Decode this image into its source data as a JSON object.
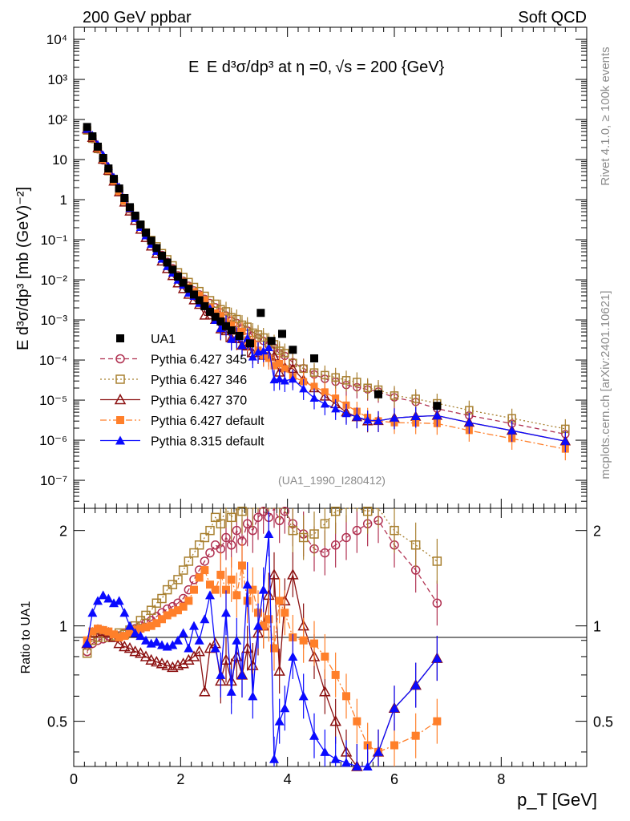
{
  "header": {
    "left_title": "200 GeV ppbar",
    "right_title": "Soft QCD"
  },
  "chart_data": {
    "type": "scatter",
    "title_parts": {
      "obs": "E d³σ/dp³ at η =0,",
      "sqrt": "√s",
      "rest": " = 200 {GeV}"
    },
    "xlabel": "p_T [GeV]",
    "ylabel": "E d³σ/dp³ [mb (GeV)⁻²]",
    "ratio_ylabel": "Ratio to UA1",
    "xlim": [
      0,
      9.6
    ],
    "ylim_log": [
      2e-08,
      20000
    ],
    "ratio_ylim": [
      0.36,
      2.35
    ],
    "x_ticks": [
      "0",
      "2",
      "4",
      "6",
      "8"
    ],
    "y_ticks": [
      "10⁻⁷",
      "10⁻⁶",
      "10⁻⁵",
      "10⁻⁴",
      "10⁻³",
      "10⁻²",
      "10⁻¹",
      "1",
      "10",
      "10²",
      "10³",
      "10⁴"
    ],
    "ratio_ticks": [
      "0.5",
      "1",
      "2"
    ],
    "watermark": "(UA1_1990_I280412)",
    "side_label_top": "Rivet 4.1.0, ≥ 100k events",
    "side_label_bottom": "mcplots.cern.ch [arXiv:2401.10621]",
    "legend": [
      {
        "name": "UA1",
        "color": "#000000",
        "marker": "square-filled",
        "line": "none"
      },
      {
        "name": "Pythia 6.427 345",
        "color": "#b03050",
        "marker": "circle-open",
        "line": "dashed"
      },
      {
        "name": "Pythia 6.427 346",
        "color": "#a88030",
        "marker": "square-open",
        "line": "dotted"
      },
      {
        "name": "Pythia 6.427 370",
        "color": "#8b1010",
        "marker": "triangle-open",
        "line": "solid"
      },
      {
        "name": "Pythia 6.427 default",
        "color": "#ff7f2a",
        "marker": "square-filled",
        "line": "dashdot"
      },
      {
        "name": "Pythia 8.315 default",
        "color": "#0a0aff",
        "marker": "triangle-filled",
        "line": "solid"
      }
    ],
    "data_x": [
      0.25,
      0.35,
      0.45,
      0.55,
      0.65,
      0.75,
      0.85,
      0.95,
      1.05,
      1.15,
      1.25,
      1.35,
      1.45,
      1.55,
      1.65,
      1.75,
      1.85,
      1.95,
      2.05,
      2.15,
      2.25,
      2.35,
      2.45,
      2.55,
      2.65,
      2.75,
      2.85,
      2.95,
      3.05,
      3.15,
      3.25,
      3.35,
      3.45,
      3.55,
      3.65,
      3.75,
      3.85,
      3.95,
      4.1,
      4.3,
      4.5,
      4.7,
      4.9,
      5.1,
      5.3,
      5.5,
      5.7,
      6.0,
      6.4,
      6.8,
      7.4,
      8.2,
      9.2
    ],
    "data_y": [
      65,
      37,
      20,
      10.5,
      5.6,
      3.1,
      1.75,
      1.0,
      0.6,
      0.36,
      0.22,
      0.14,
      0.088,
      0.058,
      0.038,
      0.025,
      0.017,
      0.011,
      0.0078,
      0.0055,
      0.0039,
      0.0029,
      0.0021,
      0.00155,
      0.00115,
      0.00088,
      0.00068,
      0.00053,
      0.00042,
      0.00033,
      0.00026,
      0.0002,
      0.00016,
      0.00013,
      0.000105,
      8.5e-05,
      6.8e-05,
      5.5e-05,
      4.2e-05,
      3.2e-05,
      2.5e-05,
      2e-05,
      1.6e-05,
      1.25e-05,
      1.05e-05,
      8.8e-06,
      7.6e-06,
      6.5e-06,
      6e-06,
      5.2e-06,
      3.5e-06,
      2.2e-06,
      1.2e-06
    ],
    "ua1_points": [
      {
        "x": 0.25,
        "y": 65
      },
      {
        "x": 0.35,
        "y": 38
      },
      {
        "x": 0.45,
        "y": 21
      },
      {
        "x": 0.55,
        "y": 11
      },
      {
        "x": 0.65,
        "y": 6
      },
      {
        "x": 0.75,
        "y": 3.3
      },
      {
        "x": 0.85,
        "y": 1.9
      },
      {
        "x": 0.95,
        "y": 1.1
      },
      {
        "x": 1.05,
        "y": 0.65
      },
      {
        "x": 1.15,
        "y": 0.4
      },
      {
        "x": 1.25,
        "y": 0.24
      },
      {
        "x": 1.35,
        "y": 0.15
      },
      {
        "x": 1.45,
        "y": 0.095
      },
      {
        "x": 1.55,
        "y": 0.062
      },
      {
        "x": 1.65,
        "y": 0.04
      },
      {
        "x": 1.75,
        "y": 0.027
      },
      {
        "x": 1.85,
        "y": 0.018
      },
      {
        "x": 1.95,
        "y": 0.012
      },
      {
        "x": 2.05,
        "y": 0.0085
      },
      {
        "x": 2.15,
        "y": 0.006
      },
      {
        "x": 2.25,
        "y": 0.0043
      },
      {
        "x": 2.35,
        "y": 0.0031
      },
      {
        "x": 2.45,
        "y": 0.0022
      },
      {
        "x": 2.55,
        "y": 0.0016
      },
      {
        "x": 2.65,
        "y": 0.0012
      },
      {
        "x": 2.75,
        "y": 0.00092
      },
      {
        "x": 2.85,
        "y": 0.0007
      },
      {
        "x": 2.95,
        "y": 0.00055
      },
      {
        "x": 3.1,
        "y": 0.0004
      },
      {
        "x": 3.3,
        "y": 0.00026
      },
      {
        "x": 3.5,
        "y": 0.0015
      },
      {
        "x": 3.7,
        "y": 0.0003
      },
      {
        "x": 3.9,
        "y": 0.00045
      },
      {
        "x": 4.1,
        "y": 0.00018
      },
      {
        "x": 4.5,
        "y": 0.00011
      },
      {
        "x": 5.7,
        "y": 1.4e-05
      },
      {
        "x": 6.8,
        "y": 7.2e-06
      }
    ],
    "ratio_series": {
      "p345": [
        0.83,
        0.88,
        0.9,
        0.91,
        0.93,
        0.92,
        0.93,
        0.95,
        0.96,
        0.98,
        1.0,
        1.02,
        1.04,
        1.07,
        1.1,
        1.13,
        1.15,
        1.18,
        1.22,
        1.3,
        1.4,
        1.5,
        1.6,
        1.7,
        1.8,
        1.75,
        1.9,
        1.8,
        2.0,
        1.85,
        2.1,
        2.0,
        2.2,
        2.3,
        2.2,
        2.4,
        2.15,
        2.3,
        2.1,
        1.95,
        1.75,
        1.7,
        1.8,
        1.9,
        2.0,
        2.1,
        2.15,
        1.8,
        1.5,
        1.18
      ],
      "p346": [
        0.82,
        0.9,
        0.92,
        0.95,
        0.92,
        0.93,
        0.95,
        0.94,
        0.97,
        1.0,
        1.04,
        1.08,
        1.12,
        1.18,
        1.22,
        1.3,
        1.35,
        1.4,
        1.5,
        1.6,
        1.7,
        1.8,
        1.9,
        2.0,
        2.2,
        2.1,
        2.4,
        2.2,
        2.5,
        2.3,
        2.6,
        2.4,
        2.7,
        2.8,
        2.6,
        2.9,
        2.5,
        2.7,
        2.0,
        1.9,
        1.95,
        2.1,
        2.3,
        2.5,
        2.7,
        2.3,
        2.4,
        2.0,
        1.8,
        1.6
      ],
      "p370": [
        0.88,
        0.95,
        0.97,
        0.96,
        0.95,
        0.92,
        0.88,
        0.86,
        0.85,
        0.83,
        0.82,
        0.8,
        0.78,
        0.77,
        0.76,
        0.75,
        0.74,
        0.75,
        0.76,
        0.78,
        0.8,
        0.83,
        0.62,
        0.85,
        0.88,
        0.67,
        0.78,
        0.67,
        0.8,
        0.7,
        0.85,
        0.75,
        0.95,
        1.0,
        1.25,
        1.45,
        0.72,
        1.2,
        1.45,
        1.0,
        0.8,
        0.62,
        0.5,
        0.4,
        0.36,
        0.34,
        0.4,
        0.55,
        0.65,
        0.79
      ],
      "p64def": [
        0.9,
        0.96,
        0.98,
        0.97,
        0.96,
        0.94,
        0.92,
        0.93,
        0.95,
        0.97,
        0.98,
        0.99,
        1.0,
        1.02,
        1.05,
        1.08,
        1.1,
        1.12,
        1.15,
        1.2,
        1.3,
        1.42,
        1.5,
        1.35,
        1.3,
        1.45,
        1.3,
        1.4,
        1.25,
        1.55,
        1.2,
        1.3,
        1.1,
        1.0,
        1.05,
        0.85,
        1.2,
        1.1,
        0.92,
        0.9,
        0.88,
        0.8,
        0.7,
        0.6,
        0.5,
        0.42,
        0.4,
        0.42,
        0.45,
        0.5
      ],
      "p8": [
        0.88,
        1.1,
        1.2,
        1.25,
        1.22,
        1.18,
        1.2,
        1.1,
        1.0,
        0.95,
        0.93,
        0.9,
        0.88,
        0.89,
        0.87,
        0.86,
        0.87,
        0.9,
        0.95,
        0.85,
        1.0,
        0.9,
        1.05,
        1.25,
        0.85,
        0.7,
        1.1,
        0.62,
        0.9,
        0.7,
        1.35,
        0.6,
        1.0,
        1.3,
        1.95,
        0.38,
        0.5,
        0.55,
        0.8,
        0.6,
        0.45,
        0.4,
        0.38,
        0.37,
        0.36,
        0.36,
        0.4,
        0.55,
        0.65,
        0.79
      ]
    }
  }
}
